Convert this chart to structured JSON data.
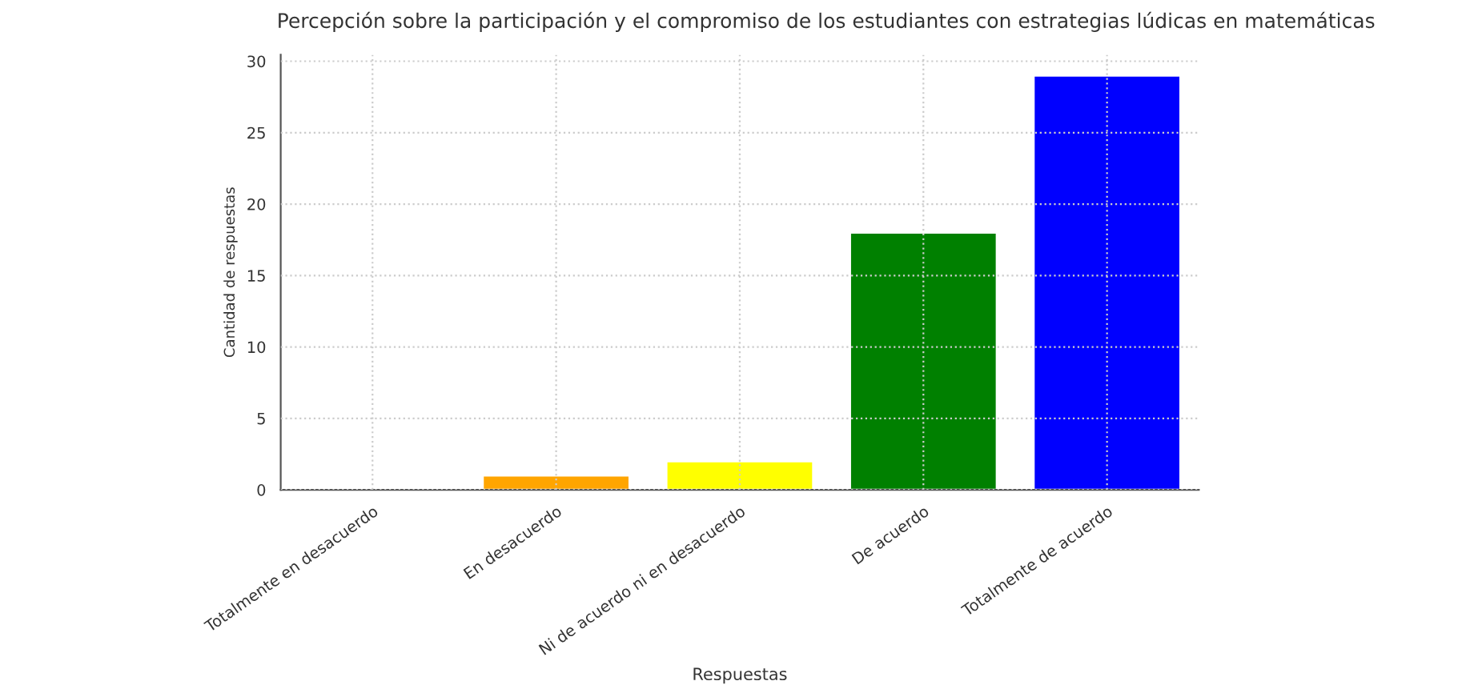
{
  "chart_data": {
    "type": "bar",
    "title": "Percepción sobre la participación y el compromiso de los estudiantes con estrategias lúdicas en matemáticas",
    "xlabel": "Respuestas",
    "ylabel": "Cantidad de respuestas",
    "categories": [
      "Totalmente en desacuerdo",
      "En desacuerdo",
      "Ni de acuerdo ni en desacuerdo",
      "De acuerdo",
      "Totalmente de acuerdo"
    ],
    "values": [
      0,
      1,
      2,
      18,
      29
    ],
    "colors": [
      null,
      "#ffa500",
      "#ffff00",
      "#008000",
      "#0000ff"
    ],
    "ylim": [
      0,
      30.45
    ],
    "yticks": [
      0,
      5,
      10,
      15,
      20,
      25,
      30
    ],
    "grid": true
  }
}
